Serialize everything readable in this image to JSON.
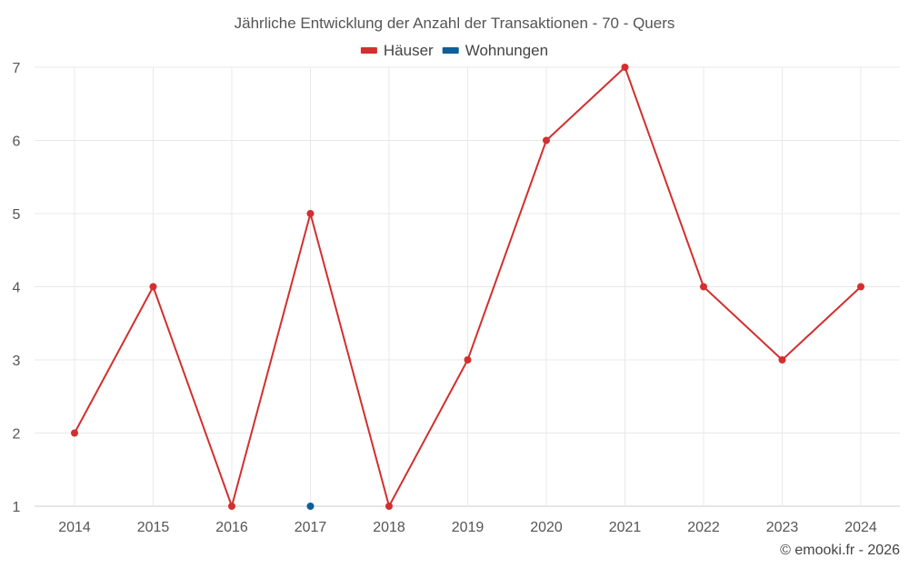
{
  "chart_data": {
    "type": "line",
    "title": "Jährliche Entwicklung der Anzahl der Transaktionen - 70 - Quers",
    "xlabel": "",
    "ylabel": "",
    "x": [
      "2014",
      "2015",
      "2016",
      "2017",
      "2018",
      "2019",
      "2020",
      "2021",
      "2022",
      "2023",
      "2024"
    ],
    "ylim": [
      1,
      7
    ],
    "yticks": [
      "1",
      "2",
      "3",
      "4",
      "5",
      "6",
      "7"
    ],
    "grid": true,
    "legend_position": "top-center",
    "series": [
      {
        "name": "Häuser",
        "color": "#d32f2f",
        "values": [
          2,
          4,
          1,
          5,
          1,
          3,
          6,
          7,
          4,
          3,
          4
        ]
      },
      {
        "name": "Wohnungen",
        "color": "#0d5f99",
        "values": [
          null,
          null,
          null,
          1,
          null,
          null,
          null,
          null,
          null,
          null,
          null
        ]
      }
    ]
  },
  "credit": "© emooki.fr - 2026"
}
